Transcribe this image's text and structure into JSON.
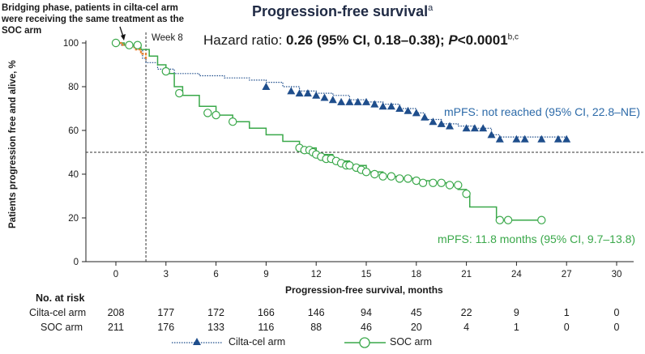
{
  "chart_data": {
    "type": "line",
    "title": "Progression-free survival",
    "title_superscript": "a",
    "subtitle_prefix": "Hazard ratio: ",
    "subtitle_value": "0.26 (95% CI, 0.18–0.38); ",
    "subtitle_p": "P",
    "subtitle_p_value": "<0.0001",
    "subtitle_superscript": "b,c",
    "bridging_note": "Bridging phase, patients in cilta-cel arm were receiving the same treatment as the SOC arm",
    "week_marker_label": "Week 8",
    "xlabel": "Progression-free survival, months",
    "ylabel": "Patients progression free and alive, %",
    "xlim": [
      -1,
      31
    ],
    "ylim": [
      0,
      100
    ],
    "x_ticks": [
      0,
      3,
      6,
      9,
      12,
      15,
      18,
      21,
      24,
      27,
      30
    ],
    "y_ticks": [
      0,
      20,
      40,
      60,
      80,
      100
    ],
    "reference_line_y": 50,
    "week8_x": 1.8,
    "series": [
      {
        "name": "Cilta-cel arm",
        "color": "#1f4e8c",
        "annotation": "mPFS: not reached (95% CI, 22.8–NE)",
        "points": [
          [
            0,
            100
          ],
          [
            0.3,
            99
          ],
          [
            0.6,
            98.5
          ],
          [
            1.0,
            98
          ],
          [
            1.3,
            97
          ],
          [
            1.6,
            93
          ],
          [
            1.8,
            91
          ],
          [
            2.5,
            88
          ],
          [
            3.5,
            86
          ],
          [
            5,
            85
          ],
          [
            6.5,
            84
          ],
          [
            8,
            83
          ],
          [
            9,
            82
          ],
          [
            10,
            80
          ],
          [
            11,
            78
          ],
          [
            12,
            77
          ],
          [
            13,
            76
          ],
          [
            14,
            74
          ],
          [
            15,
            73
          ],
          [
            16,
            72
          ],
          [
            17,
            70
          ],
          [
            18,
            68
          ],
          [
            18.5,
            65
          ],
          [
            19.5,
            63
          ],
          [
            20.5,
            62
          ],
          [
            21.5,
            61
          ],
          [
            22.5,
            58
          ],
          [
            23,
            57
          ],
          [
            27,
            57
          ]
        ],
        "censored": [
          [
            9,
            80
          ],
          [
            10.5,
            78
          ],
          [
            11,
            77
          ],
          [
            11.5,
            77
          ],
          [
            12,
            76
          ],
          [
            12.5,
            75
          ],
          [
            13,
            74
          ],
          [
            13.5,
            73
          ],
          [
            14,
            73
          ],
          [
            14.5,
            73
          ],
          [
            15,
            73
          ],
          [
            15.5,
            72
          ],
          [
            16,
            71
          ],
          [
            16.5,
            71
          ],
          [
            17,
            70
          ],
          [
            17.5,
            69
          ],
          [
            18,
            68
          ],
          [
            18.5,
            66
          ],
          [
            19,
            64
          ],
          [
            19.5,
            63
          ],
          [
            20,
            62
          ],
          [
            21,
            61
          ],
          [
            21.5,
            61
          ],
          [
            22,
            61
          ],
          [
            22.5,
            58
          ],
          [
            23,
            56
          ],
          [
            24,
            56
          ],
          [
            24.5,
            56
          ],
          [
            25.5,
            56
          ],
          [
            26.5,
            56
          ],
          [
            27,
            56
          ]
        ]
      },
      {
        "name": "SOC arm",
        "color": "#3aa84a",
        "annotation": "mPFS: 11.8 months (95% CI, 9.7–13.8)",
        "points": [
          [
            0,
            100
          ],
          [
            0.5,
            99
          ],
          [
            1,
            99
          ],
          [
            1.5,
            97
          ],
          [
            2,
            94
          ],
          [
            2.5,
            90
          ],
          [
            3,
            86
          ],
          [
            3.5,
            80
          ],
          [
            4,
            76
          ],
          [
            5,
            71
          ],
          [
            6,
            67
          ],
          [
            7,
            64
          ],
          [
            8,
            61
          ],
          [
            9,
            58
          ],
          [
            10,
            55
          ],
          [
            11,
            52
          ],
          [
            12,
            49
          ],
          [
            13,
            46
          ],
          [
            14,
            44
          ],
          [
            15,
            41
          ],
          [
            16,
            39
          ],
          [
            17,
            38
          ],
          [
            18,
            37
          ],
          [
            19,
            36
          ],
          [
            20,
            35
          ],
          [
            20.5,
            33
          ],
          [
            21,
            31
          ],
          [
            21.2,
            25
          ],
          [
            22.5,
            25
          ],
          [
            22.8,
            19
          ],
          [
            25.5,
            19
          ]
        ],
        "censored": [
          [
            0,
            100
          ],
          [
            0.8,
            99
          ],
          [
            1.3,
            99
          ],
          [
            3,
            87
          ],
          [
            3.8,
            77
          ],
          [
            5.5,
            68
          ],
          [
            6,
            67
          ],
          [
            7,
            64
          ],
          [
            11,
            52
          ],
          [
            11.3,
            51
          ],
          [
            11.6,
            51
          ],
          [
            11.8,
            50
          ],
          [
            12,
            49
          ],
          [
            12.3,
            48
          ],
          [
            12.6,
            47
          ],
          [
            12.9,
            47
          ],
          [
            13.2,
            46
          ],
          [
            13.5,
            45
          ],
          [
            13.8,
            44
          ],
          [
            14,
            44
          ],
          [
            14.4,
            43
          ],
          [
            14.7,
            42
          ],
          [
            15,
            41
          ],
          [
            15.5,
            40
          ],
          [
            16,
            39
          ],
          [
            16.5,
            39
          ],
          [
            17,
            38
          ],
          [
            17.5,
            38
          ],
          [
            18,
            37
          ],
          [
            18.4,
            36
          ],
          [
            19,
            36
          ],
          [
            19.5,
            36
          ],
          [
            20,
            35
          ],
          [
            20.5,
            35
          ],
          [
            21,
            31
          ],
          [
            23,
            19
          ],
          [
            23.5,
            19
          ],
          [
            25.5,
            19
          ]
        ]
      }
    ],
    "bridging_series": [
      [
        0,
        100
      ],
      [
        0.4,
        99
      ],
      [
        0.8,
        98
      ],
      [
        1.2,
        97
      ],
      [
        1.5,
        95
      ],
      [
        1.8,
        92
      ]
    ],
    "bridging_color": "#e8812f"
  },
  "risk_table": {
    "header": "No. at risk",
    "rows": [
      {
        "name": "Cilta-cel arm",
        "values": [
          "208",
          "177",
          "172",
          "166",
          "146",
          "94",
          "45",
          "22",
          "9",
          "1",
          "0"
        ]
      },
      {
        "name": "SOC arm",
        "values": [
          "211",
          "176",
          "133",
          "116",
          "88",
          "46",
          "20",
          "4",
          "1",
          "0",
          "0"
        ]
      }
    ]
  },
  "legend": {
    "cilta_label": "Cilta-cel arm",
    "soc_label": "SOC arm"
  }
}
